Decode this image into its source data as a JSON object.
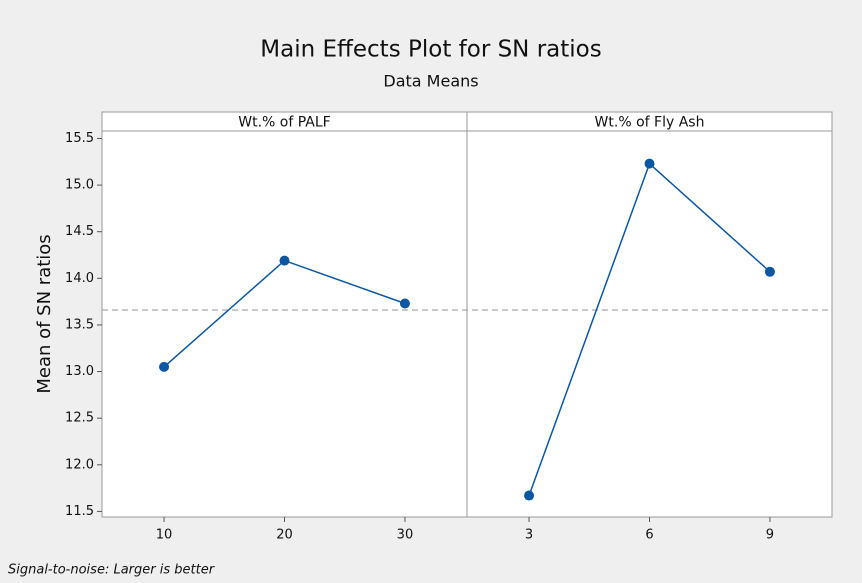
{
  "chart_data": {
    "type": "line",
    "title": "Main Effects Plot for SN ratios",
    "subtitle": "Data Means",
    "y_label": "Mean of SN ratios",
    "footnote": "Signal-to-noise: Larger is better",
    "color": "#0b57a4",
    "reference_line": 13.66,
    "ylim": [
      11.44,
      15.58
    ],
    "yticks": [
      {
        "value": 11.5,
        "label": "11.5"
      },
      {
        "value": 12,
        "label": "12.0"
      },
      {
        "value": 12.5,
        "label": "12.5"
      },
      {
        "value": 13,
        "label": "13.0"
      },
      {
        "value": 13.5,
        "label": "13.5"
      },
      {
        "value": 14,
        "label": "14.0"
      },
      {
        "value": 14.5,
        "label": "14.5"
      },
      {
        "value": 15,
        "label": "15.0"
      },
      {
        "value": 15.5,
        "label": "15.5"
      }
    ],
    "panels": [
      {
        "title": "Wt.% of PALF",
        "categories": [
          "10",
          "20",
          "30"
        ],
        "values": [
          13.05,
          14.19,
          13.73
        ]
      },
      {
        "title": "Wt.% of Fly Ash",
        "categories": [
          "3",
          "6",
          "9"
        ],
        "values": [
          11.67,
          15.23,
          14.07
        ]
      }
    ]
  }
}
